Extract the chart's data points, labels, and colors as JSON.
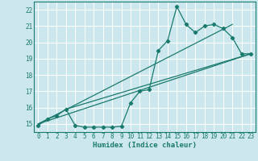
{
  "xlabel": "Humidex (Indice chaleur)",
  "bg_color": "#cce8ee",
  "grid_color": "#ffffff",
  "line_color": "#1a7a6e",
  "xlim": [
    -0.5,
    23.5
  ],
  "ylim": [
    14.5,
    22.5
  ],
  "yticks": [
    15,
    16,
    17,
    18,
    19,
    20,
    21,
    22
  ],
  "xticks": [
    0,
    1,
    2,
    3,
    4,
    5,
    6,
    7,
    8,
    9,
    10,
    11,
    12,
    13,
    14,
    15,
    16,
    17,
    18,
    19,
    20,
    21,
    22,
    23
  ],
  "line1_x": [
    0,
    1,
    2,
    3,
    4,
    5,
    6,
    7,
    8,
    9,
    10,
    11,
    12,
    13,
    14,
    15,
    16,
    17,
    18,
    19,
    20,
    21,
    22,
    23
  ],
  "line1_y": [
    14.9,
    15.3,
    15.5,
    15.9,
    14.9,
    14.8,
    14.8,
    14.8,
    14.8,
    14.85,
    16.3,
    17.0,
    17.1,
    19.5,
    20.1,
    22.2,
    21.1,
    20.6,
    21.0,
    21.1,
    20.85,
    20.3,
    19.3,
    19.3
  ],
  "line2_x": [
    0,
    23
  ],
  "line2_y": [
    15.0,
    19.3
  ],
  "line3_x": [
    3,
    23
  ],
  "line3_y": [
    15.9,
    19.3
  ],
  "line4_x": [
    0,
    21
  ],
  "line4_y": [
    15.0,
    21.1
  ]
}
